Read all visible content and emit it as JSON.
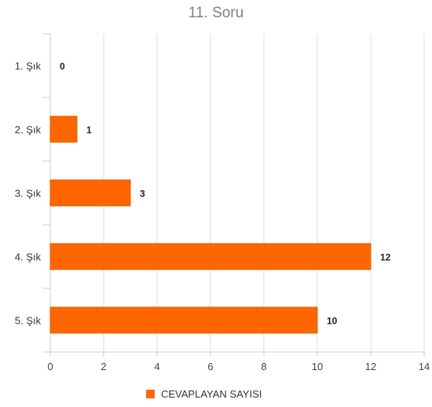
{
  "chart_data": {
    "type": "bar",
    "orientation": "horizontal",
    "title": "11. Soru",
    "categories": [
      "1. Şık",
      "2. Şık",
      "3. Şık",
      "4. Şık",
      "5. Şık"
    ],
    "series": [
      {
        "name": "CEVAPLAYAN SAYISI",
        "values": [
          0,
          1,
          3,
          12,
          10
        ],
        "color": "#ff6600"
      }
    ],
    "xlim": [
      0,
      14
    ],
    "xticks": [
      0,
      2,
      4,
      6,
      8,
      10,
      12,
      14
    ],
    "grid": true,
    "legend_position": "bottom"
  }
}
